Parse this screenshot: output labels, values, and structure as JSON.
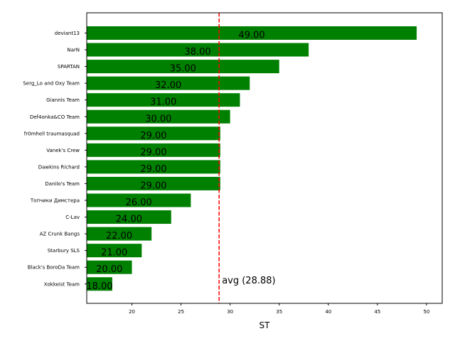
{
  "chart_data": {
    "type": "bar",
    "orientation": "horizontal",
    "categories": [
      "deviant13",
      "NarN",
      "SPARTAN",
      "Serg_Lo and Oxy Team",
      "Giannis Team",
      "Def4onka&CO Team",
      "fr0mhell traumasquad",
      "Vanek's Crew",
      "Dawkins Richard",
      "Danilo's Team",
      "Топчики Димстера",
      "C-Lav",
      "AZ Crunk Bangs",
      "Starbury SLS",
      "Black's BoroDa Team",
      "Xokkeist Team"
    ],
    "values": [
      49,
      38,
      35,
      32,
      31,
      30,
      29,
      29,
      29,
      29,
      26,
      24,
      22,
      21,
      20,
      18
    ],
    "value_labels": [
      "49.00",
      "38.00",
      "35.00",
      "32.00",
      "31.00",
      "30.00",
      "29.00",
      "29.00",
      "29.00",
      "29.00",
      "26.00",
      "24.00",
      "22.00",
      "21.00",
      "20.00",
      "18.00"
    ],
    "title": "",
    "xlabel": "ST",
    "ylabel": "",
    "xlim": [
      15.4,
      51.6
    ],
    "xticks": [
      20,
      25,
      30,
      35,
      40,
      45,
      50
    ],
    "xtick_labels": [
      "20",
      "25",
      "30",
      "35",
      "40",
      "45",
      "50"
    ],
    "bar_color": "#008000",
    "average": {
      "value": 28.88,
      "label": "avg (28.88)",
      "color": "#ff0000",
      "style": "dashed"
    },
    "grid": false
  }
}
